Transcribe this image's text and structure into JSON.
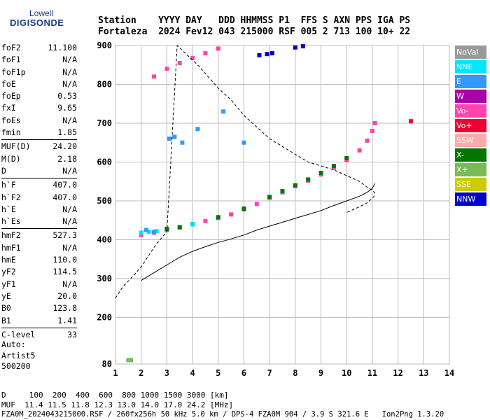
{
  "logo": {
    "brand": "Lowell",
    "product": "DIGISONDE"
  },
  "header": {
    "line1": "Station    YYYY DAY   DDD HHMMSS P1  FFS S AXN PPS IGA PS",
    "line2": "Fortaleza  2024 Fev12 043 215000 RSF 005 2 713 100 10+ 22"
  },
  "params": [
    {
      "k": "foF2",
      "v": "11.100"
    },
    {
      "k": "foF1",
      "v": "N/A"
    },
    {
      "k": "foF1p",
      "v": "N/A"
    },
    {
      "k": "foE",
      "v": "N/A"
    },
    {
      "k": "foEp",
      "v": "0.53"
    },
    {
      "k": "fxI",
      "v": "9.65"
    },
    {
      "k": "foEs",
      "v": "N/A"
    },
    {
      "k": "fmin",
      "v": "1.85"
    },
    {
      "k": "MUF(D)",
      "v": "24.20"
    },
    {
      "k": "M(D)",
      "v": "2.18"
    },
    {
      "k": "D",
      "v": "N/A"
    },
    {
      "k": "h`F",
      "v": "407.0"
    },
    {
      "k": "h`F2",
      "v": "407.0"
    },
    {
      "k": "h`E",
      "v": "N/A"
    },
    {
      "k": "h`Es",
      "v": "N/A"
    },
    {
      "k": "hmF2",
      "v": "527.3"
    },
    {
      "k": "hmF1",
      "v": "N/A"
    },
    {
      "k": "hmE",
      "v": "110.0"
    },
    {
      "k": "yF2",
      "v": "114.5"
    },
    {
      "k": "yF1",
      "v": "N/A"
    },
    {
      "k": "yE",
      "v": "20.0"
    },
    {
      "k": "B0",
      "v": "123.8"
    },
    {
      "k": "B1",
      "v": "1.41"
    },
    {
      "k": "C-level",
      "v": "33"
    }
  ],
  "auto": {
    "line1": "Auto:",
    "line2": "Artist5",
    "line3": "500200"
  },
  "legend": [
    {
      "label": "NoVal",
      "bg": "#999999",
      "fg": "#ffffff"
    },
    {
      "label": "NNE",
      "bg": "#00e5ff",
      "fg": "#ffffff"
    },
    {
      "label": "E",
      "bg": "#3399ff",
      "fg": "#ffffff"
    },
    {
      "label": "W",
      "bg": "#aa00aa",
      "fg": "#ffffff"
    },
    {
      "label": "Vo-",
      "bg": "#ff44aa",
      "fg": "#ffffff"
    },
    {
      "label": "Vo+",
      "bg": "#ee0033",
      "fg": "#ffffff"
    },
    {
      "label": "SSW",
      "bg": "#ffaaaa",
      "fg": "#ffffff"
    },
    {
      "label": "X-",
      "bg": "#007700",
      "fg": "#ffffff"
    },
    {
      "label": "X+",
      "bg": "#77bb55",
      "fg": "#ffffff"
    },
    {
      "label": "SSE",
      "bg": "#cccc00",
      "fg": "#ffffff"
    },
    {
      "label": "NNW",
      "bg": "#0000cc",
      "fg": "#ffffff"
    }
  ],
  "footer": {
    "line1": "D     100  200  400  600  800 1000 1500 3000 [km]",
    "line2": "MUF  11.4 11.5 11.8 12.3 13.0 14.0 17.0 24.2 [MHz]",
    "line3": "FZA0M_2024043215000.RSF / 260fx256h 50 kHz 5.0 km / DPS-4 FZA0M 904 / 3.9 S 321.6 E   Ion2Png 1.3.20"
  },
  "chart_data": {
    "type": "scatter",
    "xlabel": "",
    "ylabel": "",
    "xlim": [
      1,
      14
    ],
    "ylim": [
      80,
      900
    ],
    "x_ticks": [
      1,
      2,
      3,
      4,
      5,
      6,
      7,
      8,
      9,
      10,
      11,
      12,
      13,
      14
    ],
    "y_ticks": [
      80,
      200,
      300,
      400,
      500,
      600,
      700,
      800,
      900
    ],
    "grid": true,
    "series": [
      {
        "name": "Vo-",
        "color": "#ff44aa",
        "x": [
          2.0,
          2.5,
          3.0,
          3.5,
          4.0,
          4.5,
          5.0,
          5.5,
          6.0,
          6.5,
          7.0,
          7.5,
          8.0,
          8.5,
          9.0,
          9.5,
          10.0,
          10.5,
          10.8,
          11.0,
          11.1
        ],
        "y": [
          412,
          418,
          425,
          432,
          440,
          448,
          456,
          465,
          478,
          492,
          508,
          522,
          538,
          552,
          568,
          585,
          605,
          630,
          655,
          680,
          700
        ]
      },
      {
        "name": "X-",
        "color": "#007700",
        "x": [
          3.0,
          3.5,
          4.0,
          5.0,
          6.0,
          7.0,
          7.5,
          8.0,
          8.5,
          9.0,
          9.5,
          10.0
        ],
        "y": [
          428,
          432,
          440,
          458,
          480,
          510,
          525,
          540,
          555,
          572,
          590,
          610
        ]
      },
      {
        "name": "NNE",
        "color": "#00e5ff",
        "x": [
          2.0,
          2.3,
          2.6,
          4.0
        ],
        "y": [
          418,
          420,
          422,
          440
        ]
      },
      {
        "name": "E",
        "color": "#3399ff",
        "x": [
          2.2,
          2.5,
          3.1,
          3.3,
          3.6,
          4.2,
          5.2,
          6.0
        ],
        "y": [
          425,
          420,
          660,
          665,
          650,
          685,
          730,
          650
        ]
      },
      {
        "name": "Vo- upper",
        "color": "#ff44aa",
        "x": [
          2.5,
          3.0,
          3.5,
          4.0,
          4.5,
          5.0
        ],
        "y": [
          820,
          840,
          855,
          868,
          880,
          892
        ]
      },
      {
        "name": "NNW",
        "color": "#0000cc",
        "x": [
          6.6,
          6.9,
          7.1,
          8.0,
          8.3
        ],
        "y": [
          875,
          878,
          880,
          895,
          898
        ]
      },
      {
        "name": "Vo+",
        "color": "#ee0033",
        "x": [
          12.5
        ],
        "y": [
          705
        ]
      },
      {
        "name": "X+",
        "color": "#77bb55",
        "x": [
          1.5,
          1.6
        ],
        "y": [
          90,
          90
        ]
      }
    ],
    "profile_solid": {
      "x": [
        2.0,
        2.5,
        3.0,
        3.5,
        4.0,
        4.5,
        5.0,
        5.5,
        6.0,
        6.5,
        7.0,
        7.5,
        8.0,
        8.5,
        9.0,
        9.5,
        10.0,
        10.5,
        10.8,
        11.0,
        11.1
      ],
      "y": [
        295,
        315,
        335,
        355,
        370,
        382,
        393,
        402,
        412,
        425,
        435,
        445,
        455,
        465,
        475,
        488,
        500,
        512,
        522,
        532,
        545
      ]
    },
    "profile_dashed": {
      "x": [
        1.0,
        1.3,
        1.6,
        2.0,
        2.3,
        2.6,
        3.0,
        3.4,
        3.8,
        4.2,
        4.6,
        5.0,
        5.5,
        6.0,
        6.5,
        7.0,
        7.5,
        8.0,
        8.5,
        9.0,
        9.5,
        10.0,
        10.5,
        10.8,
        11.0,
        11.1,
        11.05,
        10.8,
        10.5,
        10.0
      ],
      "y": [
        250,
        280,
        300,
        330,
        360,
        390,
        420,
        900,
        875,
        850,
        820,
        790,
        760,
        720,
        690,
        660,
        640,
        620,
        600,
        590,
        580,
        565,
        550,
        535,
        528,
        520,
        510,
        495,
        485,
        470
      ]
    }
  }
}
